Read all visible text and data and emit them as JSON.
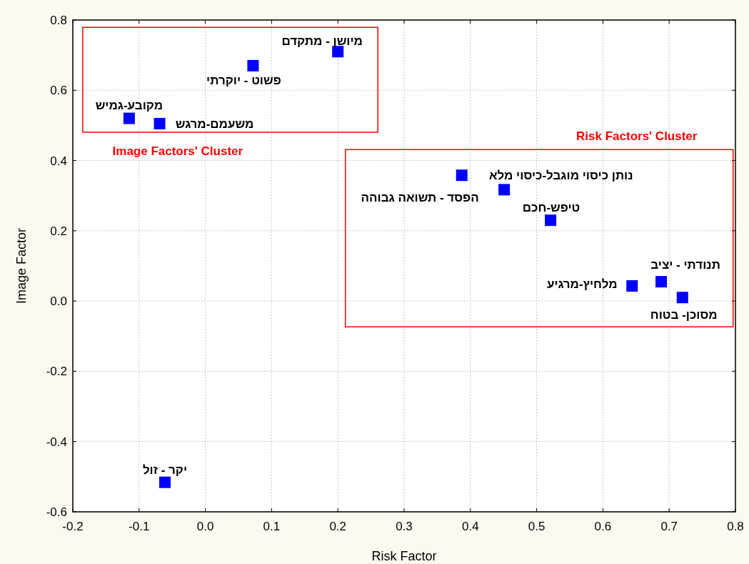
{
  "chart_data": {
    "type": "scatter",
    "xlabel": "Risk Factor",
    "ylabel": "Image Factor",
    "marker": "square",
    "grid": true,
    "xlim": [
      -0.2,
      0.8
    ],
    "xticks": [
      -0.2,
      -0.1,
      {
        "value": 0,
        "label": "0.0"
      },
      0.1,
      0.2,
      0.3,
      0.4,
      0.5,
      0.6,
      0.7,
      0.8
    ],
    "ylim": [
      -0.6,
      0.8
    ],
    "yticks": [
      -0.6,
      -0.4,
      -0.2,
      {
        "value": 0,
        "label": "0.0"
      },
      0.2,
      0.4,
      0.6,
      0.8
    ],
    "series": [
      {
        "color": "#0000ff",
        "x": [
          0.2,
          0.072,
          -0.115,
          -0.069
        ],
        "values": [
          0.71,
          0.67,
          0.52,
          0.505
        ]
      },
      {
        "color": "#0000ff",
        "x": [
          0.387,
          0.451,
          0.521,
          0.644,
          0.688,
          0.72
        ],
        "values": [
          0.358,
          0.317,
          0.23,
          0.043,
          0.055,
          0.01
        ]
      },
      {
        "color": "#0000ff",
        "x": [
          -0.061
        ],
        "values": [
          -0.516
        ]
      }
    ],
    "annotations": [
      "Image Factors' Cluster",
      "Risk Factors' Cluster",
      {
        "text": "מיושן - מתקדם",
        "x": 0.2,
        "y": 0.71
      },
      {
        "text": "פשוט - יוקרתי",
        "x": 0.072,
        "y": 0.67
      },
      {
        "text": "מקובע-גמיש",
        "x": -0.115,
        "y": 0.52
      },
      {
        "text": "משעמם-מרגש",
        "x": -0.069,
        "y": 0.505
      },
      {
        "text": "נותן כיסוי מוגבל-כיסוי מלא",
        "x": 0.387,
        "y": 0.358
      },
      {
        "text": "הפסד - תשואה גבוהה",
        "x": 0.451,
        "y": 0.317
      },
      {
        "text": "טיפש-חכם",
        "x": 0.521,
        "y": 0.23
      },
      {
        "text": "מלחיץ-מרגיע",
        "x": 0.644,
        "y": 0.043
      },
      {
        "text": "תנודתי - יציב",
        "x": 0.688,
        "y": 0.055
      },
      {
        "text": "מסוכן- בטוח",
        "x": 0.72,
        "y": 0.01
      },
      {
        "text": "יקר - זול",
        "x": -0.061,
        "y": -0.516
      }
    ]
  }
}
